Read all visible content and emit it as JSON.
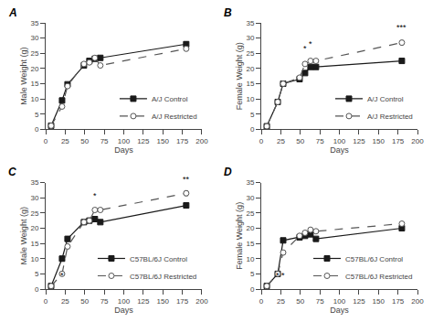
{
  "chart_data": [
    {
      "type": "line",
      "title": "A",
      "x_label": "Days",
      "y_label": "Male Weight (g)",
      "x": [
        7,
        21,
        28,
        49,
        56,
        63,
        70,
        180
      ],
      "xlim": [
        0,
        200
      ],
      "xticks": [
        0,
        25,
        50,
        75,
        100,
        125,
        150,
        175,
        200
      ],
      "ylim": [
        0,
        35
      ],
      "yticks": [
        0,
        5,
        10,
        15,
        20,
        25,
        30,
        35
      ],
      "grid": false,
      "legend": "lower right",
      "series": [
        {
          "name": "A/J Control",
          "color": "#1a1a1a",
          "marker": "square",
          "line_style": "solid",
          "values": [
            1.2,
            9.5,
            14.8,
            21.0,
            22.5,
            23.2,
            23.5,
            28.0
          ],
          "yerr": [
            0.15,
            0.5,
            0.5,
            0.5,
            0.5,
            0.5,
            0.5,
            0.7
          ]
        },
        {
          "name": "A/J Restricted",
          "color": "#555555",
          "marker": "open circle",
          "line_style": "dashed",
          "values": [
            1.2,
            7.5,
            14.2,
            21.5,
            22.0,
            23.5,
            21.0,
            26.5
          ],
          "yerr": [
            0.15,
            0.5,
            0.5,
            0.5,
            0.5,
            0.5,
            0.5,
            0.7
          ]
        }
      ],
      "annotations": []
    },
    {
      "type": "line",
      "title": "B",
      "x_label": "Days",
      "y_label": "Female Weight (g)",
      "x": [
        7,
        21,
        28,
        49,
        56,
        63,
        70,
        180
      ],
      "xlim": [
        0,
        200
      ],
      "xticks": [
        0,
        25,
        50,
        75,
        100,
        125,
        150,
        175,
        200
      ],
      "ylim": [
        0,
        35
      ],
      "yticks": [
        0,
        5,
        10,
        15,
        20,
        25,
        30,
        35
      ],
      "grid": false,
      "legend": "lower right",
      "series": [
        {
          "name": "A/J Control",
          "color": "#1a1a1a",
          "marker": "square",
          "line_style": "solid",
          "values": [
            1.0,
            9.0,
            15.0,
            16.5,
            18.5,
            20.5,
            20.5,
            22.5
          ],
          "yerr": [
            0.15,
            0.5,
            0.5,
            0.5,
            0.5,
            0.5,
            0.5,
            0.5
          ]
        },
        {
          "name": "A/J Restricted",
          "color": "#555555",
          "marker": "open circle",
          "line_style": "dashed",
          "values": [
            1.0,
            9.0,
            15.0,
            17.0,
            21.5,
            22.5,
            22.5,
            28.5
          ],
          "yerr": [
            0.15,
            0.5,
            0.5,
            0.5,
            0.5,
            0.5,
            0.5,
            0.7
          ]
        }
      ],
      "annotations": [
        {
          "x": 56,
          "y": 24.5,
          "text": "*"
        },
        {
          "x": 63,
          "y": 26.0,
          "text": "*"
        },
        {
          "x": 180,
          "y": 31.5,
          "text": "***"
        }
      ]
    },
    {
      "type": "line",
      "title": "C",
      "x_label": "Days",
      "y_label": "Male Weight (g)",
      "x": [
        7,
        21,
        28,
        49,
        56,
        63,
        70,
        180
      ],
      "xlim": [
        0,
        200
      ],
      "xticks": [
        0,
        25,
        50,
        75,
        100,
        125,
        150,
        175,
        200
      ],
      "ylim": [
        0,
        35
      ],
      "yticks": [
        0,
        5,
        10,
        15,
        20,
        25,
        30,
        35
      ],
      "grid": false,
      "legend": "lower right",
      "series": [
        {
          "name": "C57BL/6J Control",
          "color": "#1a1a1a",
          "marker": "square",
          "line_style": "solid",
          "values": [
            1.0,
            10.0,
            16.5,
            22.0,
            22.5,
            23.0,
            22.0,
            27.5
          ],
          "yerr": [
            0.15,
            0.7,
            0.8,
            0.6,
            0.5,
            0.5,
            0.5,
            0.7
          ]
        },
        {
          "name": "C57BL/6J Restricted",
          "color": "#555555",
          "marker": "open circle",
          "line_style": "dashed",
          "values": [
            1.0,
            5.0,
            14.0,
            22.0,
            22.5,
            26.0,
            26.0,
            31.5
          ],
          "yerr": [
            0.15,
            0.6,
            0.7,
            0.6,
            0.5,
            0.5,
            0.5,
            0.8
          ]
        }
      ],
      "annotations": [
        {
          "x": 21,
          "y": 2.5,
          "text": "*"
        },
        {
          "x": 63,
          "y": 28.5,
          "text": "*"
        },
        {
          "x": 180,
          "y": 34.0,
          "text": "**"
        }
      ]
    },
    {
      "type": "line",
      "title": "D",
      "x_label": "Days",
      "y_label": "Female Weight (g)",
      "x": [
        7,
        21,
        28,
        49,
        56,
        63,
        70,
        180
      ],
      "xlim": [
        0,
        200
      ],
      "xticks": [
        0,
        25,
        50,
        75,
        100,
        125,
        150,
        175,
        200
      ],
      "ylim": [
        0,
        35
      ],
      "yticks": [
        0,
        5,
        10,
        15,
        20,
        25,
        30,
        35
      ],
      "grid": false,
      "legend": "lower right",
      "series": [
        {
          "name": "C57BL/6J Control",
          "color": "#1a1a1a",
          "marker": "square",
          "line_style": "solid",
          "values": [
            1.0,
            5.0,
            16.0,
            17.0,
            17.5,
            18.0,
            16.5,
            20.0
          ],
          "yerr": [
            0.15,
            0.5,
            0.5,
            0.5,
            0.5,
            0.5,
            0.5,
            0.5
          ]
        },
        {
          "name": "C57BL/6J Restricted",
          "color": "#555555",
          "marker": "open circle",
          "line_style": "dashed",
          "values": [
            1.0,
            5.0,
            12.0,
            17.5,
            18.5,
            19.5,
            19.0,
            21.5
          ],
          "yerr": [
            0.15,
            0.5,
            0.5,
            0.5,
            0.5,
            0.5,
            0.5,
            0.5
          ]
        }
      ],
      "annotations": [
        {
          "x": 21,
          "y": 2.5,
          "text": "*"
        },
        {
          "x": 28,
          "y": 2.5,
          "text": "*"
        }
      ]
    }
  ]
}
